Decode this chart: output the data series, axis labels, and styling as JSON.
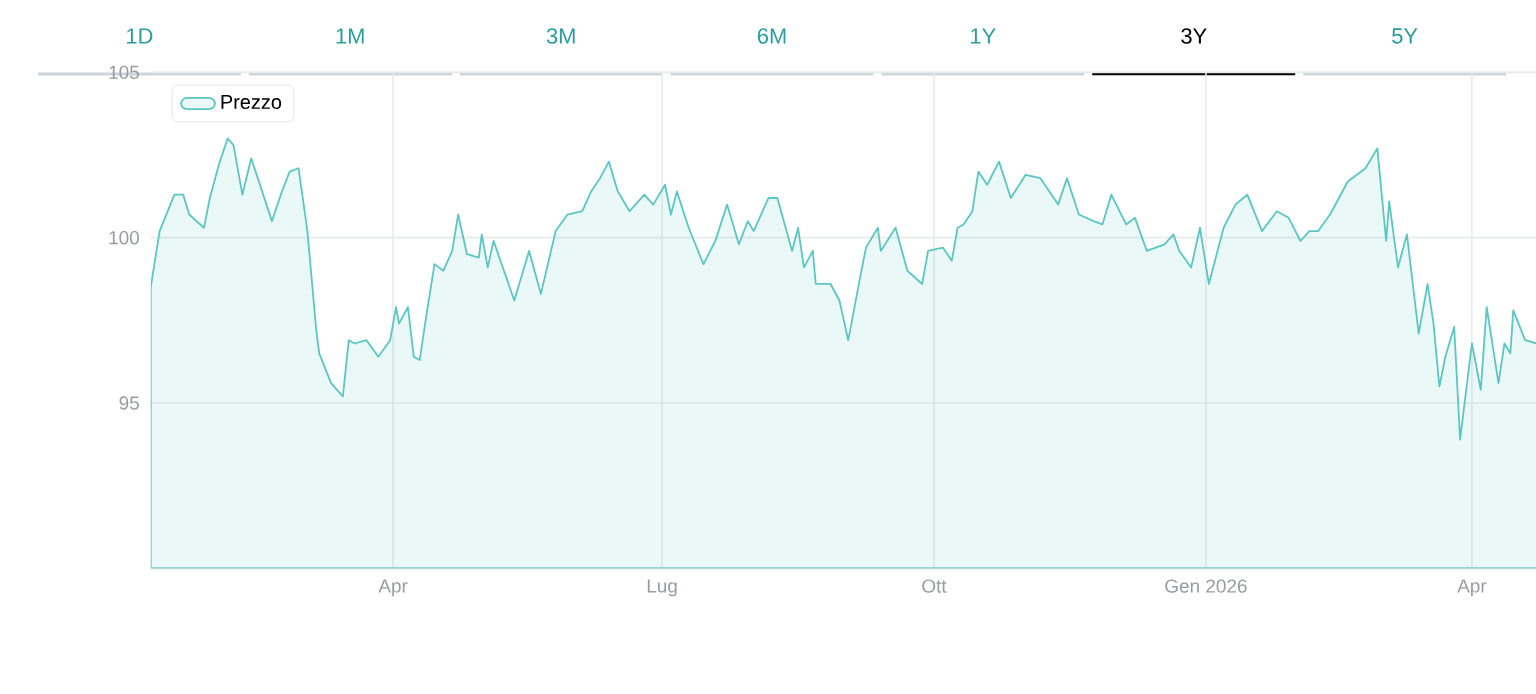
{
  "chart_data": {
    "type": "area",
    "annotations": [
      "1D",
      "1M",
      "3M",
      "6M",
      "1Y",
      "3Y",
      "5Y"
    ],
    "xlim": [
      "2025-01-09",
      "2026-04-27"
    ],
    "xticks": [
      {
        "value": "2025-04-01",
        "label": "Apr"
      },
      {
        "value": "2025-07-01",
        "label": "Lug"
      },
      {
        "value": "2025-10-01",
        "label": "Ott"
      },
      {
        "value": "2026-01-01",
        "label": "Gen 2026"
      },
      {
        "value": "2026-04-01",
        "label": "Apr"
      }
    ],
    "ylim": [
      90,
      105
    ],
    "yticks": [
      95,
      100,
      105
    ],
    "grid": true,
    "legend": "top left",
    "series": [
      {
        "name": "Prezzo",
        "color": "#5cc6c2",
        "x": [
          "2025-01-09",
          "2025-01-12",
          "2025-01-17",
          "2025-01-20",
          "2025-01-22",
          "2025-01-27",
          "2025-01-29",
          "2025-02-01",
          "2025-02-04",
          "2025-02-06",
          "2025-02-09",
          "2025-02-12",
          "2025-02-19",
          "2025-02-22",
          "2025-02-25",
          "2025-02-28",
          "2025-03-03",
          "2025-03-06",
          "2025-03-07",
          "2025-03-11",
          "2025-03-15",
          "2025-03-17",
          "2025-03-19",
          "2025-03-23",
          "2025-03-27",
          "2025-03-31",
          "2025-04-02",
          "2025-04-03",
          "2025-04-06",
          "2025-04-08",
          "2025-04-10",
          "2025-04-12",
          "2025-04-15",
          "2025-04-18",
          "2025-04-21",
          "2025-04-23",
          "2025-04-26",
          "2025-04-30",
          "2025-05-01",
          "2025-05-03",
          "2025-05-05",
          "2025-05-12",
          "2025-05-17",
          "2025-05-21",
          "2025-05-26",
          "2025-05-30",
          "2025-06-04",
          "2025-06-07",
          "2025-06-10",
          "2025-06-13",
          "2025-06-16",
          "2025-06-20",
          "2025-06-25",
          "2025-06-28",
          "2025-07-02",
          "2025-07-04",
          "2025-07-06",
          "2025-07-10",
          "2025-07-15",
          "2025-07-19",
          "2025-07-23",
          "2025-07-27",
          "2025-07-30",
          "2025-08-01",
          "2025-08-06",
          "2025-08-09",
          "2025-08-14",
          "2025-08-16",
          "2025-08-18",
          "2025-08-21",
          "2025-08-22",
          "2025-08-27",
          "2025-08-30",
          "2025-09-02",
          "2025-09-06",
          "2025-09-08",
          "2025-09-12",
          "2025-09-13",
          "2025-09-18",
          "2025-09-22",
          "2025-09-27",
          "2025-09-29",
          "2025-10-04",
          "2025-10-07",
          "2025-10-09",
          "2025-10-11",
          "2025-10-14",
          "2025-10-16",
          "2025-10-19",
          "2025-10-23",
          "2025-10-27",
          "2025-11-01",
          "2025-11-06",
          "2025-11-12",
          "2025-11-15",
          "2025-11-19",
          "2025-11-24",
          "2025-11-27",
          "2025-11-30",
          "2025-12-05",
          "2025-12-08",
          "2025-12-12",
          "2025-12-18",
          "2025-12-21",
          "2025-12-23",
          "2025-12-27",
          "2025-12-30",
          "2026-01-02",
          "2026-01-07",
          "2026-01-11",
          "2026-01-15",
          "2026-01-20",
          "2026-01-25",
          "2026-01-29",
          "2026-02-02",
          "2026-02-05",
          "2026-02-08",
          "2026-02-12",
          "2026-02-18",
          "2026-02-24",
          "2026-02-28",
          "2026-03-03",
          "2026-03-04",
          "2026-03-07",
          "2026-03-10",
          "2026-03-14",
          "2026-03-17",
          "2026-03-19",
          "2026-03-21",
          "2026-03-23",
          "2026-03-26",
          "2026-03-28",
          "2026-04-01",
          "2026-04-04",
          "2026-04-06",
          "2026-04-10",
          "2026-04-12",
          "2026-04-14",
          "2026-04-15",
          "2026-04-19",
          "2026-04-23",
          "2026-04-27"
        ],
        "values": [
          98.5,
          100.2,
          101.3,
          101.3,
          100.7,
          100.3,
          101.2,
          102.2,
          103.0,
          102.8,
          101.3,
          102.4,
          100.5,
          101.3,
          102.0,
          102.1,
          100.2,
          97.2,
          96.5,
          95.6,
          95.2,
          96.9,
          96.8,
          96.9,
          96.4,
          96.9,
          97.9,
          97.4,
          97.9,
          96.4,
          96.3,
          97.5,
          99.2,
          99.0,
          99.6,
          100.7,
          99.5,
          99.4,
          100.1,
          99.1,
          99.9,
          98.1,
          99.6,
          98.3,
          100.2,
          100.7,
          100.8,
          101.4,
          101.8,
          102.3,
          101.4,
          100.8,
          101.3,
          101.0,
          101.6,
          100.7,
          101.4,
          100.3,
          99.2,
          99.9,
          101.0,
          99.8,
          100.5,
          100.2,
          101.2,
          101.2,
          99.6,
          100.3,
          99.1,
          99.6,
          98.6,
          98.6,
          98.1,
          96.9,
          98.8,
          99.7,
          100.3,
          99.6,
          100.3,
          99.0,
          98.6,
          99.6,
          99.7,
          99.3,
          100.3,
          100.4,
          100.8,
          102.0,
          101.6,
          102.3,
          101.2,
          101.9,
          101.8,
          101.0,
          101.8,
          100.7,
          100.5,
          100.4,
          101.3,
          100.4,
          100.6,
          99.6,
          99.8,
          100.1,
          99.6,
          99.1,
          100.3,
          98.6,
          100.3,
          101.0,
          101.3,
          100.2,
          100.8,
          100.6,
          99.9,
          100.2,
          100.2,
          100.7,
          101.7,
          102.1,
          102.7,
          99.9,
          101.1,
          99.1,
          100.1,
          97.1,
          98.6,
          97.4,
          95.5,
          96.4,
          97.3,
          93.9,
          96.8,
          95.4,
          97.9,
          95.6,
          96.8,
          96.5,
          97.8,
          96.9,
          96.8,
          95.8
        ]
      }
    ]
  }
}
